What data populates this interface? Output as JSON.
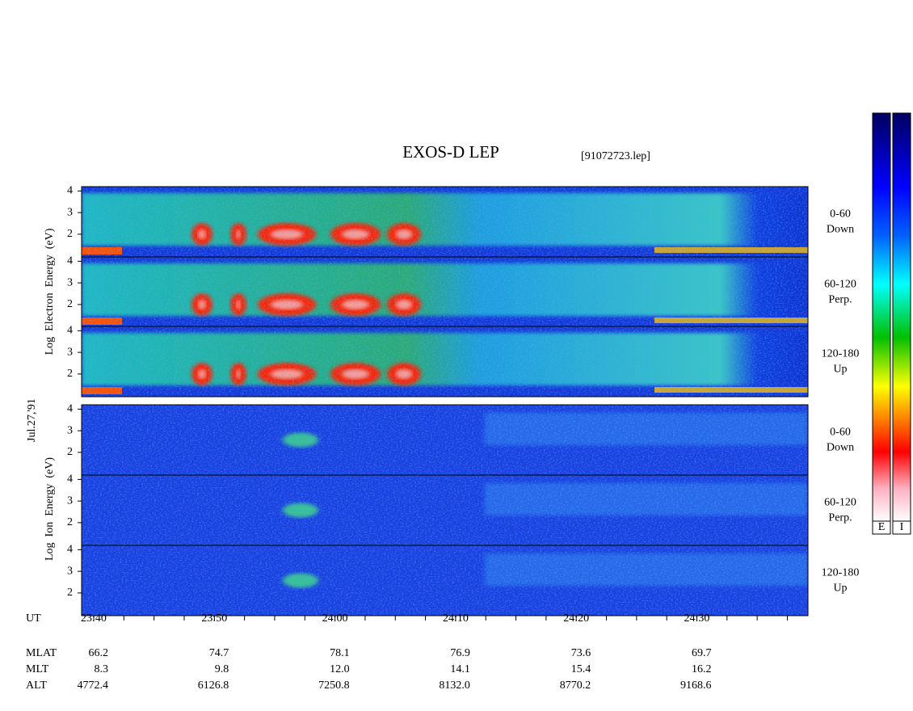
{
  "title": "EXOS-D LEP",
  "file": "[91072723.lep]",
  "date": "Jul.27,'91",
  "electron_axis_label": "Log  Electron  Energy  (eV)",
  "ion_axis_label": "Log  Ion  Energy  (eV)",
  "ylim": [
    0.95,
    4.2
  ],
  "yticks": [
    2,
    3,
    4
  ],
  "panels": [
    {
      "group": "electron",
      "angle": "0-60",
      "direction": "Down"
    },
    {
      "group": "electron",
      "angle": "60-120",
      "direction": "Perp."
    },
    {
      "group": "electron",
      "angle": "120-180",
      "direction": "Up"
    },
    {
      "group": "ion",
      "angle": "0-60",
      "direction": "Down"
    },
    {
      "group": "ion",
      "angle": "60-120",
      "direction": "Perp."
    },
    {
      "group": "ion",
      "angle": "120-180",
      "direction": "Up"
    }
  ],
  "colorbar_labels": [
    "E",
    "I"
  ],
  "time_table": {
    "row_names": [
      "UT",
      "MLAT",
      "MLT",
      "ALT"
    ],
    "columns": [
      [
        "23:40",
        "66.2",
        "8.3",
        "4772.4"
      ],
      [
        "23:50",
        "74.7",
        "9.8",
        "6126.8"
      ],
      [
        "24:00",
        "78.1",
        "12.0",
        "7250.8"
      ],
      [
        "24:10",
        "76.9",
        "14.1",
        "8132.0"
      ],
      [
        "24:20",
        "73.6",
        "15.4",
        "8770.2"
      ],
      [
        "24:30",
        "69.7",
        "16.2",
        "9168.6"
      ]
    ]
  }
}
